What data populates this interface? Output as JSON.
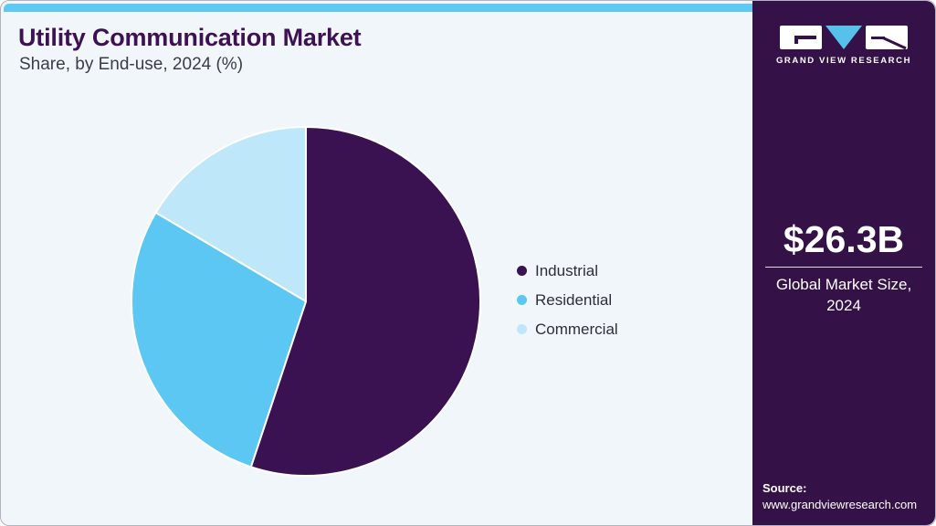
{
  "header": {
    "title": "Utility Communication Market",
    "subtitle": "Share, by End-use, 2024 (%)"
  },
  "chart_data": {
    "type": "pie",
    "title": "Utility Communication Market Share, by End-use, 2024 (%)",
    "labels": [
      "Industrial",
      "Residential",
      "Commercial"
    ],
    "values": [
      55.1,
      28.4,
      16.5
    ],
    "unit": "%",
    "colors": [
      "#3a1151",
      "#5bc7f2",
      "#bee7f9"
    ],
    "start_angle_deg": 0,
    "direction": "clockwise",
    "legend_position": "right",
    "slice_border_color": "#ffffff"
  },
  "sidebar": {
    "brand": "GRAND VIEW RESEARCH",
    "market_size_value": "$26.3B",
    "market_size_label": "Global Market Size, 2024",
    "source_label": "Source:",
    "source_url": "www.grandviewresearch.com"
  },
  "colors": {
    "accent_cyan": "#5ec9f3",
    "sidebar_purple": "#341147",
    "title_purple": "#3d1152",
    "panel_bg": "#f1f6fb",
    "industrial": "#3a1151",
    "residential": "#5bc7f2",
    "commercial": "#bee7f9"
  }
}
